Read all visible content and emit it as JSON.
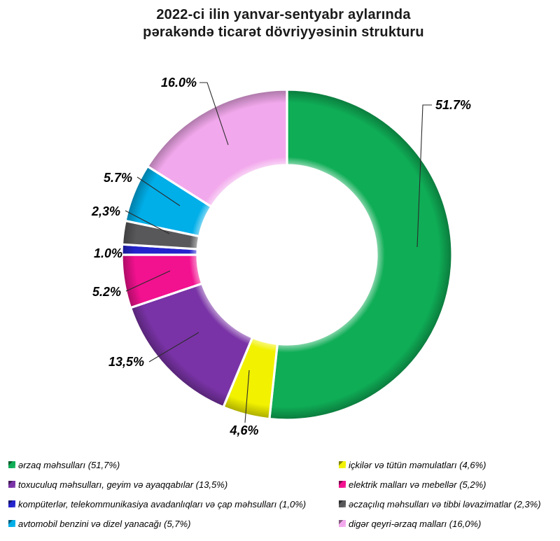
{
  "title": {
    "line1": "2022-ci ilin yanvar-sentyabr aylarında",
    "line2": "pərakəndə ticarət dövriyyəsinin strukturu"
  },
  "chart_data": {
    "type": "pie",
    "subtype": "donut",
    "title": "2022-ci ilin yanvar-sentyabr aylarında pərakəndə ticarət dövriyyəsinin strukturu",
    "direction": "clockwise",
    "start_angle_deg": 0,
    "donut_hole_ratio": 0.54,
    "legend_position": "bottom",
    "categories": [
      "ərzaq məhsulları",
      "içkilər və tütün məmulatları",
      "toxuculuq məhsulları, geyim və ayaqqabılar",
      "elektrik malları və mebellər",
      "kompüterlər, telekommunikasiya avadanlıqları və çap məhsulları",
      "əczaçılıq məhsulları və tibbi ləvazimatlar",
      "avtomobil benzini və dizel yanacağı",
      "digər qeyri-ərzaq malları"
    ],
    "values": [
      51.7,
      4.6,
      13.5,
      5.2,
      1.0,
      2.3,
      5.7,
      16.0
    ],
    "slices": [
      {
        "label": "ərzaq məhsulları",
        "value": 51.7,
        "display_label": "51.7%",
        "legend_text": "ərzaq məhsulları (51,7%)",
        "color": "#0FAD56"
      },
      {
        "label": "içkilər və tütün məmulatları",
        "value": 4.6,
        "display_label": "4,6%",
        "legend_text": "içkilər və tütün məmulatları (4,6%)",
        "color": "#F1F100"
      },
      {
        "label": "toxuculuq məhsulları, geyim və ayaqqabılar",
        "value": 13.5,
        "display_label": "13,5%",
        "legend_text": "toxuculuq məhsulları, geyim və ayaqqabılar (13,5%)",
        "color": "#7933A6"
      },
      {
        "label": "elektrik malları və mebellər",
        "value": 5.2,
        "display_label": "5.2%",
        "legend_text": "elektrik malları və mebellər (5,2%)",
        "color": "#F2118F"
      },
      {
        "label": "kompüterlər, telekommunikasiya avadanlıqları və çap məhsulları",
        "value": 1.0,
        "display_label": "1.0%",
        "legend_text": "kompüterlər, telekommunikasiya avadanlıqları və çap məhsulları (1,0%)",
        "color": "#2424CC"
      },
      {
        "label": "əczaçılıq məhsulları və tibbi ləvazimatlar",
        "value": 2.3,
        "display_label": "2,3%",
        "legend_text": "əczaçılıq məhsulları və tibbi ləvazimatlar (2,3%)",
        "color": "#58585A"
      },
      {
        "label": "avtomobil benzini və dizel yanacağı",
        "value": 5.7,
        "display_label": "5.7%",
        "legend_text": "avtomobil benzini və dizel yanacağı (5,7%)",
        "color": "#00AEE8"
      },
      {
        "label": "digər qeyri-ərzaq malları",
        "value": 16.0,
        "display_label": "16.0%",
        "legend_text": "digər qeyri-ərzaq malları (16,0%)",
        "color": "#F2A8EC"
      }
    ],
    "legend": {
      "columns": [
        [
          0,
          2,
          4,
          6
        ],
        [
          1,
          3,
          5,
          7
        ]
      ]
    }
  }
}
